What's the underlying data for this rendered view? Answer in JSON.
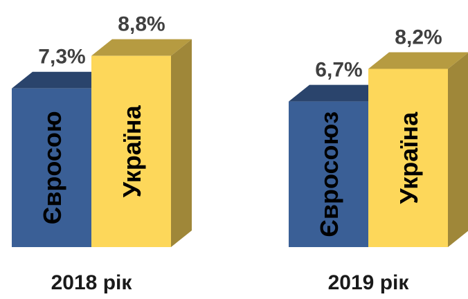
{
  "chart_data": {
    "type": "bar3d",
    "categories": [
      "2018 рік",
      "2019 рік"
    ],
    "series": [
      {
        "labels": [
          "Євросою",
          "Євросоюз"
        ],
        "color": "#3a5f96",
        "values": [
          7.3,
          6.7
        ],
        "value_labels": [
          "7,3%",
          "6,7%"
        ]
      },
      {
        "labels": [
          "Україна",
          "Україна"
        ],
        "color": "#fdd75a",
        "values": [
          8.8,
          8.2
        ],
        "value_labels": [
          "8,8%",
          "8,2%"
        ]
      }
    ]
  }
}
